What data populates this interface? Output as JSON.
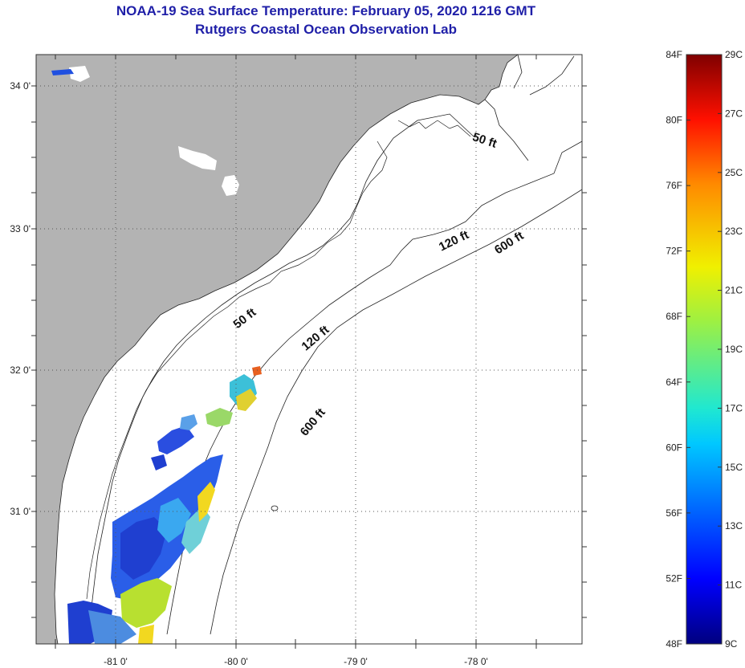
{
  "title_line1": "NOAA-19 Sea Surface Temperature:  February 05, 2020 1216 GMT",
  "title_line2": "Rutgers Coastal Ocean Observation Lab",
  "longitude_labels": [
    "-81 0'",
    "-80 0'",
    "-79 0'",
    "-78 0'"
  ],
  "latitude_labels": [
    "34 0'",
    "33 0'",
    "32 0'",
    "31 0'"
  ],
  "contour_labels": {
    "ft50_a": "50 ft",
    "ft50_b": "50 ft",
    "ft120_a": "120 ft",
    "ft120_b": "120 ft",
    "ft600_a": "600 ft",
    "ft600_b": "600 ft"
  },
  "colorbar": {
    "fahrenheit_labels": [
      "84F",
      "80F",
      "76F",
      "72F",
      "68F",
      "64F",
      "60F",
      "56F",
      "52F",
      "48F"
    ],
    "celsius_labels": [
      "29C",
      "27C",
      "25C",
      "23C",
      "21C",
      "19C",
      "17C",
      "15C",
      "13C",
      "11C",
      "9C"
    ]
  },
  "colors": {
    "title": "#1f1fa8",
    "land": "#b3b3b3",
    "ocean": "#ffffff"
  }
}
